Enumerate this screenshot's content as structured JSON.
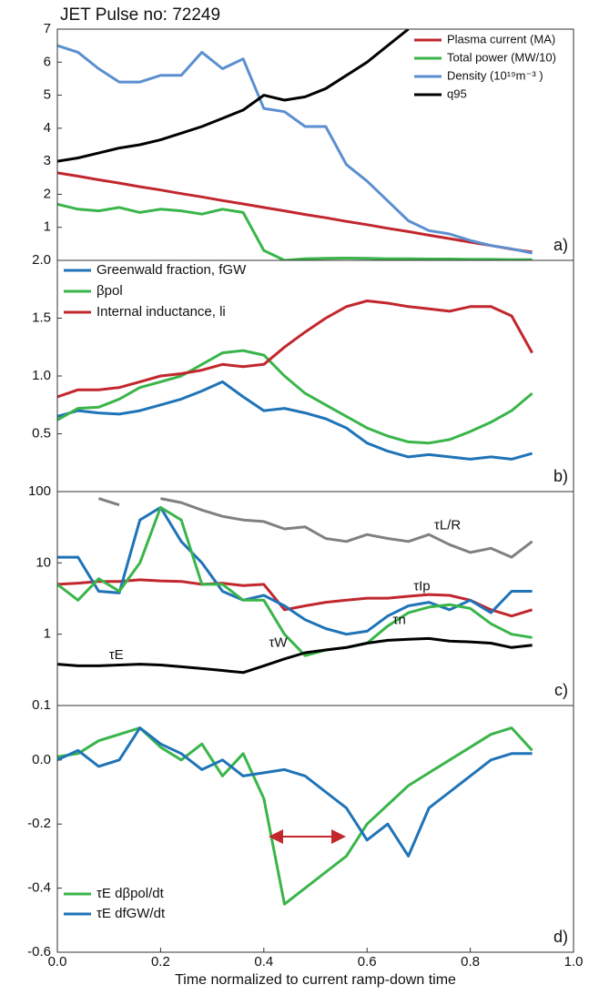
{
  "chart_data": [
    {
      "type": "line",
      "title": "JET Pulse no: 72249",
      "panel_label": "a)",
      "legend": "top-right",
      "x": [
        0,
        0.04,
        0.08,
        0.12,
        0.16,
        0.2,
        0.24,
        0.28,
        0.32,
        0.36,
        0.4,
        0.44,
        0.48,
        0.52,
        0.56,
        0.6,
        0.64,
        0.68,
        0.72,
        0.76,
        0.8,
        0.84,
        0.88,
        0.92
      ],
      "xlim": [
        0,
        1
      ],
      "ylim": [
        0,
        7
      ],
      "yticks": [
        1,
        2,
        3,
        4,
        5,
        6,
        7
      ],
      "series": [
        {
          "name": "Plasma current (MA)",
          "color": "#c1272d",
          "values": [
            2.65,
            2.55,
            2.44,
            2.34,
            2.23,
            2.13,
            2.02,
            1.92,
            1.81,
            1.71,
            1.6,
            1.5,
            1.39,
            1.29,
            1.18,
            1.08,
            0.97,
            0.87,
            0.76,
            0.66,
            0.55,
            0.45,
            0.34,
            0.25
          ]
        },
        {
          "name": "Total power (MW/10)",
          "color": "#39b54a",
          "values": [
            1.7,
            1.55,
            1.5,
            1.6,
            1.45,
            1.55,
            1.5,
            1.4,
            1.55,
            1.45,
            0.3,
            0.0,
            0.05,
            0.06,
            0.07,
            0.06,
            0.05,
            0.05,
            0.04,
            0.04,
            0.03,
            0.03,
            0.02,
            0.02
          ]
        },
        {
          "name": "Density (10¹⁹m⁻³ )",
          "color": "#5b8fd0",
          "values": [
            6.5,
            6.3,
            5.8,
            5.4,
            5.4,
            5.6,
            5.6,
            6.3,
            5.8,
            6.1,
            4.6,
            4.5,
            4.05,
            4.05,
            2.9,
            2.4,
            1.8,
            1.2,
            0.9,
            0.8,
            0.6,
            0.45,
            0.35,
            0.22
          ]
        },
        {
          "name": "q95",
          "color": "#000000",
          "values": [
            3.0,
            3.1,
            3.25,
            3.4,
            3.5,
            3.65,
            3.85,
            4.05,
            4.3,
            4.55,
            5.0,
            4.85,
            4.95,
            5.2,
            5.6,
            6.0,
            6.5,
            7.0,
            null,
            null,
            null,
            null,
            null,
            null
          ]
        }
      ]
    },
    {
      "type": "line",
      "panel_label": "b)",
      "legend": "top-left",
      "x": [
        0,
        0.04,
        0.08,
        0.12,
        0.16,
        0.2,
        0.24,
        0.28,
        0.32,
        0.36,
        0.4,
        0.44,
        0.48,
        0.52,
        0.56,
        0.6,
        0.64,
        0.68,
        0.72,
        0.76,
        0.8,
        0.84,
        0.88,
        0.92
      ],
      "xlim": [
        0,
        1
      ],
      "ylim": [
        0,
        2
      ],
      "yticks": [
        0.5,
        {
          "value": 1,
          "label": "1.0"
        },
        1.5,
        {
          "value": 2,
          "label": "2.0"
        }
      ],
      "series": [
        {
          "name": "Greenwald fraction, fGW",
          "color": "#1f73b7",
          "values": [
            0.65,
            0.7,
            0.68,
            0.67,
            0.7,
            0.75,
            0.8,
            0.87,
            0.95,
            0.82,
            0.7,
            0.72,
            0.68,
            0.63,
            0.55,
            0.42,
            0.35,
            0.3,
            0.32,
            0.3,
            0.28,
            0.3,
            0.28,
            0.33
          ]
        },
        {
          "name": "βpol",
          "color": "#39b54a",
          "values": [
            0.62,
            0.72,
            0.73,
            0.8,
            0.9,
            0.95,
            1.0,
            1.1,
            1.2,
            1.22,
            1.18,
            1.0,
            0.85,
            0.75,
            0.65,
            0.55,
            0.48,
            0.43,
            0.42,
            0.45,
            0.52,
            0.6,
            0.7,
            0.85
          ]
        },
        {
          "name": "Internal inductance, li",
          "color": "#c1272d",
          "values": [
            0.82,
            0.88,
            0.88,
            0.9,
            0.95,
            1.0,
            1.02,
            1.05,
            1.1,
            1.08,
            1.1,
            1.25,
            1.38,
            1.5,
            1.6,
            1.65,
            1.63,
            1.6,
            1.58,
            1.56,
            1.6,
            1.6,
            1.52,
            1.2
          ]
        }
      ]
    },
    {
      "type": "line",
      "panel_label": "c)",
      "legend": "inline",
      "log": true,
      "x": [
        0,
        0.04,
        0.08,
        0.12,
        0.16,
        0.2,
        0.24,
        0.28,
        0.32,
        0.36,
        0.4,
        0.44,
        0.48,
        0.52,
        0.56,
        0.6,
        0.64,
        0.68,
        0.72,
        0.76,
        0.8,
        0.84,
        0.88,
        0.92
      ],
      "xlim": [
        0,
        1
      ],
      "ylim": [
        0.1,
        100
      ],
      "yticks": [
        0.1,
        1,
        10,
        100
      ],
      "series": [
        {
          "name": "τL/R",
          "color": "#808080",
          "values": [
            70,
            null,
            80,
            65,
            null,
            80,
            70,
            55,
            45,
            40,
            38,
            30,
            32,
            22,
            20,
            25,
            22,
            20,
            25,
            18,
            14,
            16,
            12,
            20
          ]
        },
        {
          "name": "τIp",
          "color": "#c1272d",
          "values": [
            5,
            5.2,
            5.5,
            5.5,
            5.8,
            5.6,
            5.5,
            5,
            5.2,
            4.8,
            5.0,
            2.2,
            2.5,
            2.8,
            3.0,
            3.2,
            3.2,
            3.4,
            3.6,
            3.5,
            3.0,
            2.2,
            1.8,
            2.2
          ]
        },
        {
          "name": "τn",
          "color": "#1f73b7",
          "values": [
            12,
            12,
            4,
            3.8,
            40,
            60,
            20,
            10,
            4,
            3,
            3.5,
            2.5,
            1.6,
            1.2,
            1.0,
            1.1,
            1.8,
            2.5,
            2.8,
            2.2,
            3.0,
            2.0,
            4.0,
            4.0
          ]
        },
        {
          "name": "τW",
          "color": "#39b54a",
          "values": [
            5,
            3,
            6,
            4,
            10,
            60,
            40,
            5,
            5,
            3,
            3,
            1.0,
            0.5,
            0.6,
            0.65,
            0.75,
            1.3,
            2,
            2.4,
            2.6,
            2.3,
            1.4,
            1.0,
            0.9
          ]
        },
        {
          "name": "τE",
          "color": "#000000",
          "values": [
            0.38,
            0.36,
            0.36,
            0.37,
            0.38,
            0.37,
            0.35,
            0.33,
            0.31,
            0.29,
            0.36,
            0.45,
            0.55,
            0.6,
            0.65,
            0.75,
            0.82,
            0.85,
            0.87,
            0.8,
            0.78,
            0.75,
            0.65,
            0.7
          ]
        }
      ]
    },
    {
      "type": "line",
      "panel_label": "d)",
      "legend": "bottom-left",
      "x": [
        0,
        0.04,
        0.08,
        0.12,
        0.16,
        0.2,
        0.24,
        0.28,
        0.32,
        0.36,
        0.4,
        0.44,
        0.48,
        0.52,
        0.56,
        0.6,
        0.64,
        0.68,
        0.72,
        0.76,
        0.8,
        0.84,
        0.88,
        0.92
      ],
      "xlim": [
        0,
        1
      ],
      "ylim": [
        -0.6,
        0.17
      ],
      "yticks": [
        -0.6,
        -0.4,
        -0.2,
        {
          "value": 0,
          "label": "0.0"
        }
      ],
      "xticks": [
        {
          "value": 0,
          "label": "0.0"
        },
        0.2,
        0.4,
        0.6,
        0.8,
        {
          "value": 1,
          "label": "1.0"
        }
      ],
      "xlabel": "Time normalized to current ramp-down time",
      "series": [
        {
          "name": "τE dβpol/dt",
          "color": "#39b54a",
          "values": [
            0.01,
            0.02,
            0.06,
            0.08,
            0.1,
            0.04,
            0.0,
            0.05,
            -0.05,
            0.02,
            -0.12,
            -0.45,
            -0.4,
            -0.35,
            -0.3,
            -0.2,
            -0.14,
            -0.08,
            -0.04,
            0.0,
            0.04,
            0.08,
            0.1,
            0.03
          ]
        },
        {
          "name": "τE dfGW/dt",
          "color": "#1f73b7",
          "values": [
            0.0,
            0.03,
            -0.02,
            0.0,
            0.1,
            0.05,
            0.02,
            -0.03,
            0.0,
            -0.05,
            -0.04,
            -0.03,
            -0.05,
            -0.1,
            -0.15,
            -0.25,
            -0.2,
            -0.3,
            -0.15,
            -0.1,
            -0.05,
            0.0,
            0.02,
            0.02
          ]
        }
      ]
    }
  ]
}
